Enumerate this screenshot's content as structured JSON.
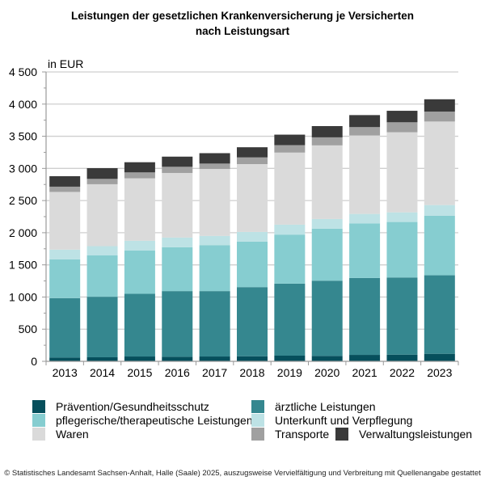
{
  "title": {
    "line1": "Leistungen der gesetzlichen Krankenversicherung je Versicherten",
    "line2": "nach Leistungsart"
  },
  "footer": "© Statistisches Landesamt Sachsen-Anhalt, Halle (Saale) 2025, auszugsweise Vervielfältigung und Verbreitung mit Quellenangabe gestattet",
  "chart_data": {
    "type": "bar",
    "stacked": true,
    "title": "Leistungen der gesetzlichen Krankenversicherung je Versicherten nach Leistungsart",
    "xlabel": "",
    "ylabel": "in EUR",
    "ylim": [
      0,
      4500
    ],
    "yticks": [
      0,
      500,
      1000,
      1500,
      2000,
      2500,
      3000,
      3500,
      4000,
      4500
    ],
    "ytick_labels": [
      "0",
      "500",
      "1 000",
      "1 500",
      "2 000",
      "2 500",
      "3 000",
      "3 500",
      "4 000",
      "4 500"
    ],
    "grid": true,
    "legend_position": "bottom",
    "categories": [
      "2013",
      "2014",
      "2015",
      "2016",
      "2017",
      "2018",
      "2019",
      "2020",
      "2021",
      "2022",
      "2023"
    ],
    "series": [
      {
        "name": "Prävention/Gesundheitsschutz",
        "color": "#064f5c",
        "values": [
          58,
          63,
          75,
          71,
          75,
          79,
          88,
          84,
          100,
          104,
          117
        ]
      },
      {
        "name": "ärztliche Leistungen",
        "color": "#35878f",
        "values": [
          925,
          941,
          975,
          1021,
          1017,
          1075,
          1120,
          1170,
          1196,
          1200,
          1221
        ]
      },
      {
        "name": "pflegerische/therapeutische Leistungen",
        "color": "#86cdd0",
        "values": [
          604,
          646,
          675,
          683,
          712,
          708,
          763,
          809,
          850,
          863,
          925
        ]
      },
      {
        "name": "Unterkunft und Verpflegung",
        "color": "#bde2e5",
        "values": [
          150,
          141,
          150,
          150,
          146,
          150,
          154,
          150,
          146,
          150,
          167
        ]
      },
      {
        "name": "Waren",
        "color": "#dadada",
        "values": [
          897,
          963,
          971,
          1004,
          1042,
          1055,
          1121,
          1145,
          1220,
          1245,
          1299
        ]
      },
      {
        "name": "Transporte",
        "color": "#a0a0a0",
        "values": [
          82,
          83,
          92,
          96,
          83,
          104,
          116,
          125,
          130,
          155,
          154
        ]
      },
      {
        "name": "Verwaltungsleistungen",
        "color": "#3a3a3a",
        "values": [
          163,
          167,
          158,
          158,
          162,
          158,
          163,
          175,
          187,
          179,
          192
        ]
      }
    ]
  }
}
